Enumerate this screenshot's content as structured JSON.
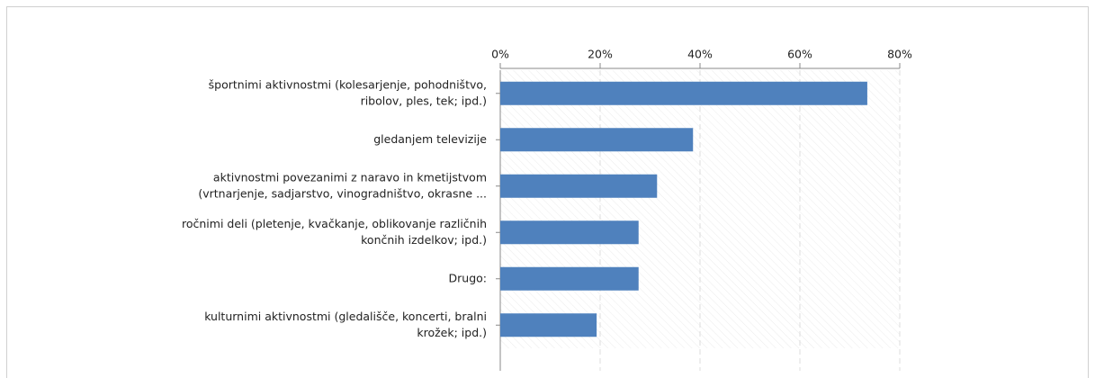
{
  "chart_data": {
    "type": "bar",
    "orientation": "horizontal",
    "categories": [
      [
        "športnimi aktivnostmi (kolesarjenje, pohodništvo,",
        "ribolov, ples, tek; ipd.)"
      ],
      [
        "gledanjem televizije"
      ],
      [
        "aktivnostmi povezanimi z naravo in kmetijstvom",
        "(vrtnarjenje, sadjarstvo, vinogradništvo, okrasne ..."
      ],
      [
        "ročnimi deli (pletenje, kvačkanje, oblikovanje različnih",
        "končnih izdelkov; ipd.)"
      ],
      [
        "Drugo:"
      ],
      [
        "kulturnimi aktivnostmi (gledališče, koncerti, bralni",
        "krožek; ipd.)"
      ]
    ],
    "values": [
      73.5,
      38.6,
      31.4,
      27.7,
      27.7,
      19.3
    ],
    "color": "#4f81bd",
    "xlim": [
      0,
      80
    ],
    "xticks": [
      {
        "value": 0,
        "label": "0%"
      },
      {
        "value": 20,
        "label": "20%"
      },
      {
        "value": 40,
        "label": "40%"
      },
      {
        "value": 60,
        "label": "60%"
      },
      {
        "value": 80,
        "label": "80%"
      }
    ],
    "grid": true
  }
}
